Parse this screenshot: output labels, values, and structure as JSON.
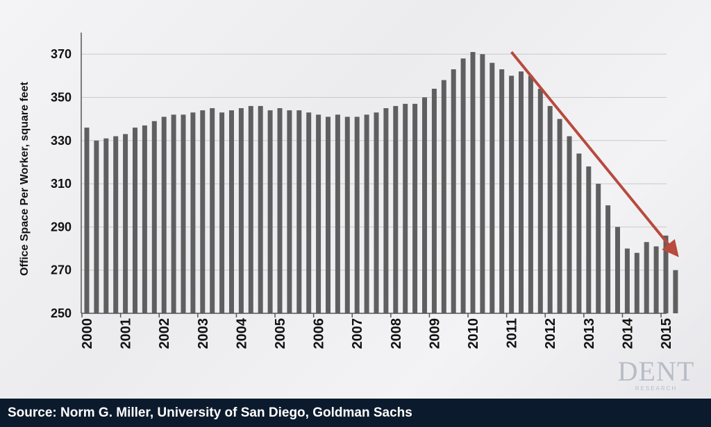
{
  "chart_data": {
    "type": "bar",
    "ylabel": "Office Space Per Worker, square feet",
    "xlabel": "",
    "ylim": [
      250,
      380
    ],
    "yticks": [
      250,
      270,
      290,
      310,
      330,
      350,
      370
    ],
    "xtick_labels": [
      "2000",
      "2001",
      "2002",
      "2003",
      "2004",
      "2005",
      "2006",
      "2007",
      "2008",
      "2009",
      "2010",
      "2011",
      "2012",
      "2013",
      "2014",
      "2015"
    ],
    "grid": true,
    "bar_color": "#5f5f5f",
    "trend_arrow": {
      "color": "#b84a3e",
      "from": {
        "x": 2011.0,
        "y": 371
      },
      "to": {
        "x": 2015.2,
        "y": 279
      }
    },
    "values": [
      336,
      330,
      331,
      332,
      333,
      336,
      337,
      339,
      341,
      342,
      342,
      343,
      344,
      345,
      343,
      344,
      345,
      346,
      346,
      344,
      345,
      344,
      344,
      343,
      342,
      341,
      342,
      341,
      341,
      342,
      343,
      345,
      346,
      347,
      347,
      350,
      354,
      358,
      363,
      368,
      371,
      370,
      366,
      363,
      360,
      362,
      360,
      354,
      346,
      340,
      332,
      324,
      318,
      310,
      300,
      290,
      280,
      278,
      283,
      281,
      286,
      270
    ]
  },
  "source": "Source: Norm G. Miller, University of San Diego, Goldman Sachs",
  "logo": {
    "main": "DENT",
    "sub": "RESEARCH"
  }
}
